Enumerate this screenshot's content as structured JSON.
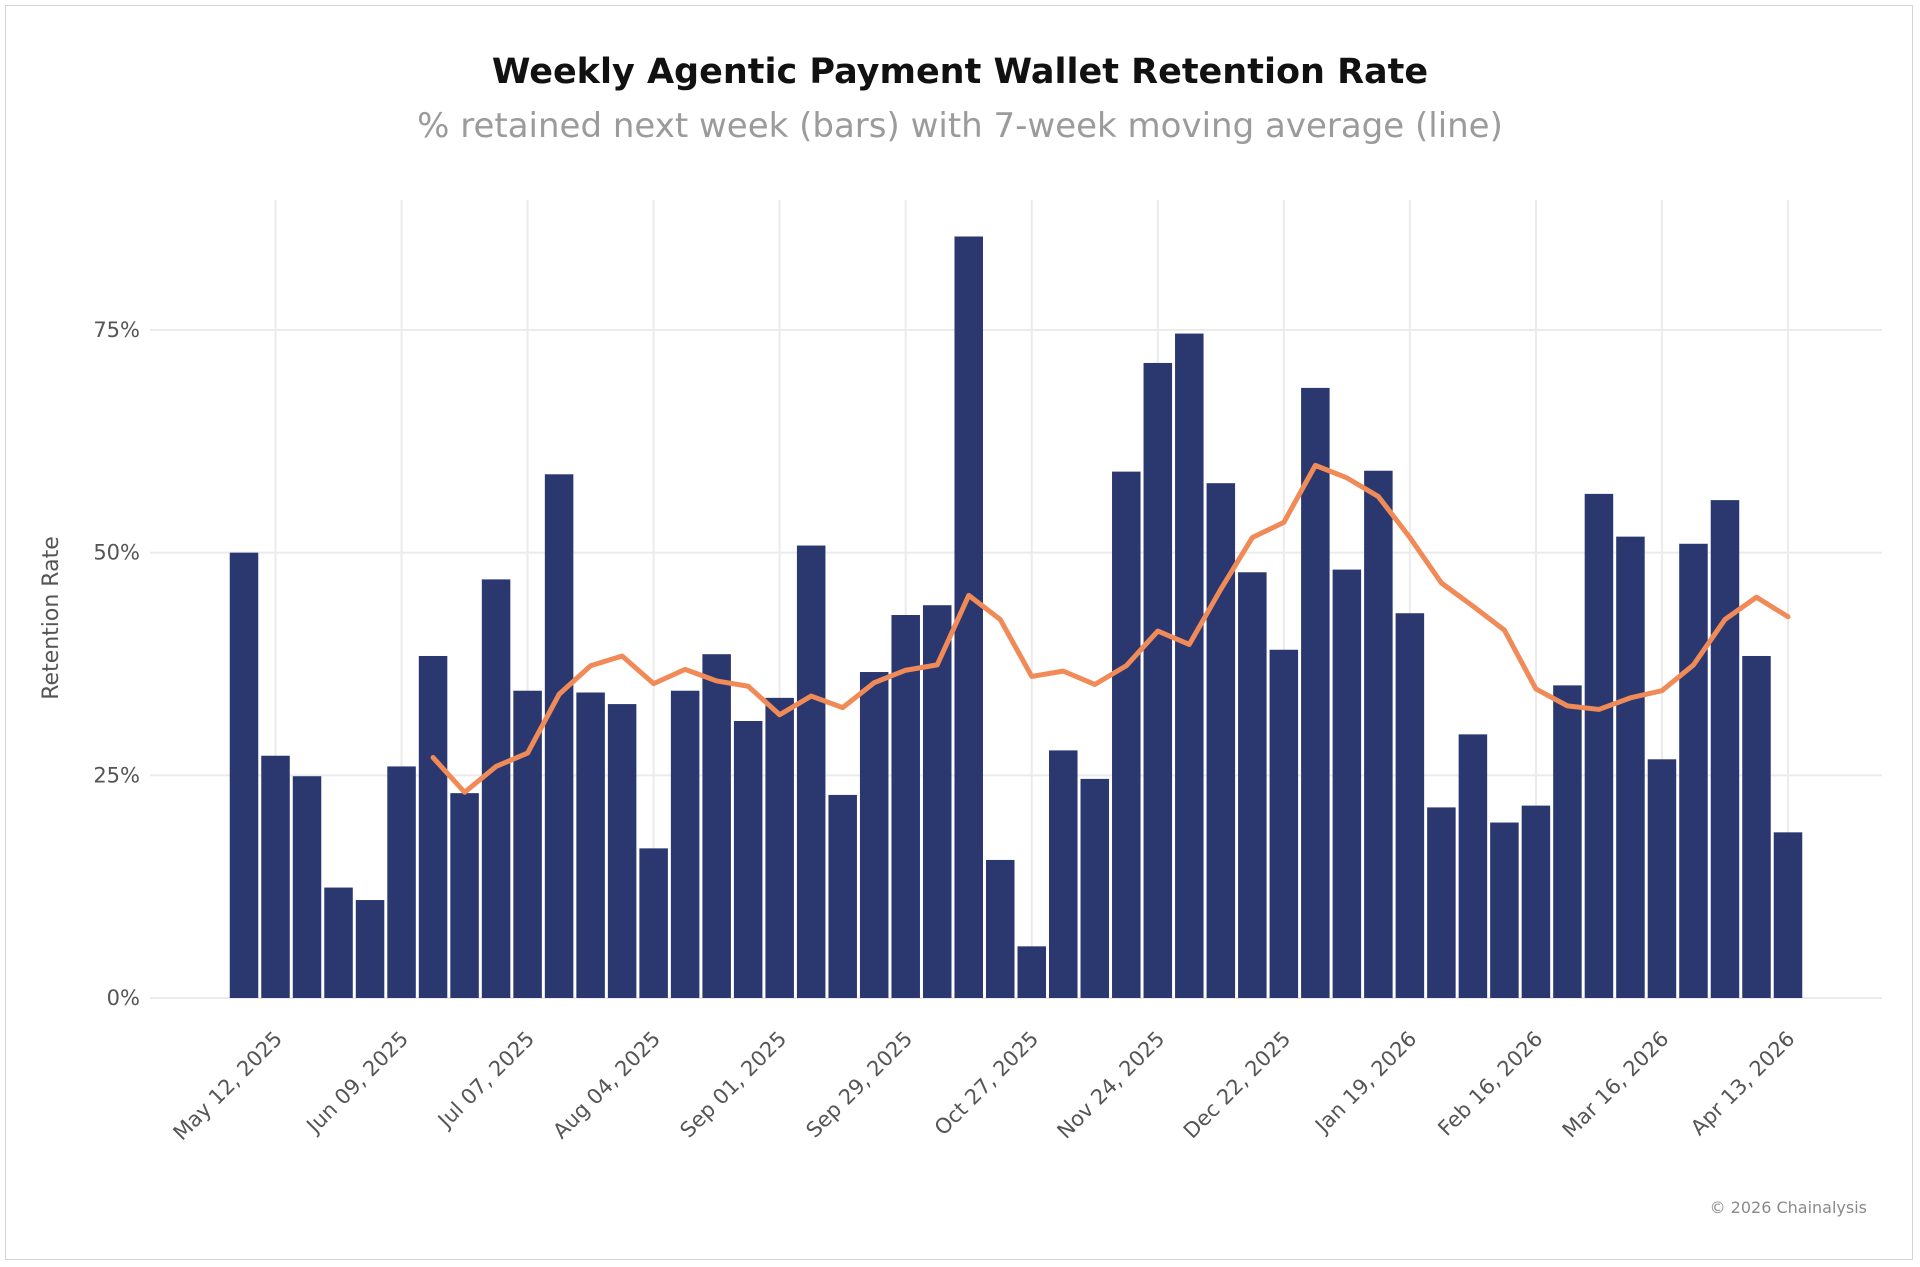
{
  "chart_data": {
    "type": "bar",
    "title": "Weekly Agentic Payment Wallet Retention Rate",
    "subtitle": "% retained next week (bars) with 7-week moving average (line)",
    "ylabel": "Retention Rate",
    "xlabel": "",
    "ylim": [
      0,
      0.9
    ],
    "yticks": [
      0,
      0.25,
      0.5,
      0.75
    ],
    "ytick_labels": [
      "0%",
      "25%",
      "50%",
      "75%"
    ],
    "grid": true,
    "x_start": "2025-05-05",
    "x_end": "2026-04-13",
    "xticks": [
      "2025-05-12",
      "2025-06-09",
      "2025-07-07",
      "2025-08-04",
      "2025-09-01",
      "2025-09-29",
      "2025-10-27",
      "2025-11-24",
      "2025-12-22",
      "2026-01-19",
      "2026-02-16",
      "2026-03-16",
      "2026-04-13"
    ],
    "xtick_labels": [
      "May 12, 2025",
      "Jun 09, 2025",
      "Jul 07, 2025",
      "Aug 04, 2025",
      "Sep 01, 2025",
      "Sep 29, 2025",
      "Oct 27, 2025",
      "Nov 24, 2025",
      "Dec 22, 2025",
      "Jan 19, 2026",
      "Feb 16, 2026",
      "Mar 16, 2026",
      "Apr 13, 2026"
    ],
    "series": [
      {
        "kind": "bar",
        "color": "#2b3870",
        "values": [
          0.5,
          0.272,
          0.249,
          0.124,
          0.11,
          0.26,
          0.384,
          0.23,
          0.47,
          0.345,
          0.588,
          0.343,
          0.33,
          0.168,
          0.345,
          0.386,
          0.311,
          0.337,
          0.508,
          0.228,
          0.366,
          0.43,
          0.441,
          0.855,
          0.155,
          0.058,
          0.278,
          0.246,
          0.591,
          0.713,
          0.746,
          0.578,
          0.478,
          0.391,
          0.685,
          0.481,
          0.592,
          0.432,
          0.214,
          0.296,
          0.197,
          0.216,
          0.351,
          0.566,
          0.518,
          0.268,
          0.51,
          0.559,
          0.384,
          0.186
        ]
      },
      {
        "kind": "line",
        "color": "#f08a57",
        "values": [
          null,
          null,
          null,
          null,
          null,
          null,
          0.27,
          0.231,
          0.26,
          0.275,
          0.341,
          0.373,
          0.384,
          0.353,
          0.369,
          0.356,
          0.35,
          0.318,
          0.339,
          0.326,
          0.354,
          0.368,
          0.374,
          0.452,
          0.425,
          0.361,
          0.367,
          0.352,
          0.373,
          0.412,
          0.397,
          0.459,
          0.517,
          0.534,
          0.598,
          0.584,
          0.563,
          0.517,
          0.466,
          0.44,
          0.413,
          0.347,
          0.328,
          0.324,
          0.337,
          0.345,
          0.374,
          0.425,
          0.45,
          0.428
        ]
      }
    ]
  },
  "footer": {
    "credit": "© 2026 Chainalysis"
  }
}
